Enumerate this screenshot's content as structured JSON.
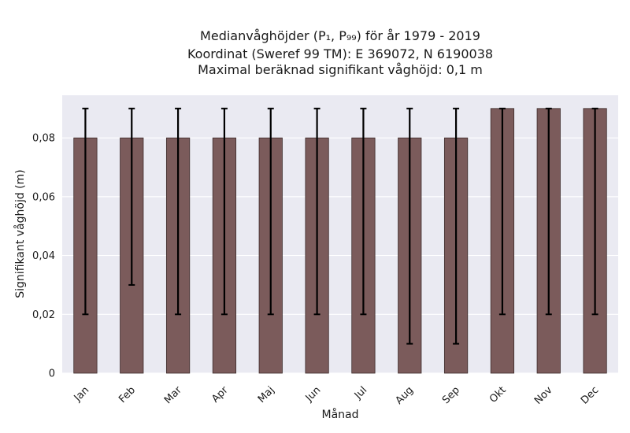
{
  "chart_data": {
    "type": "bar",
    "title_lines": [
      "Medianvåghöjder (P₁, P₉₉) för år 1979 - 2019",
      "Koordinat (Sweref 99 TM): E 369072, N 6190038",
      "Maximal beräknad signifikant våghöjd: 0,1 m"
    ],
    "xlabel": "Månad",
    "ylabel": "Signifikant våghöjd (m)",
    "categories": [
      "Jan",
      "Feb",
      "Mar",
      "Apr",
      "Maj",
      "Jun",
      "Jul",
      "Aug",
      "Sep",
      "Okt",
      "Nov",
      "Dec"
    ],
    "values": [
      0.08,
      0.08,
      0.08,
      0.08,
      0.08,
      0.08,
      0.08,
      0.08,
      0.08,
      0.09,
      0.09,
      0.09
    ],
    "error_low": [
      0.02,
      0.03,
      0.02,
      0.02,
      0.02,
      0.02,
      0.02,
      0.01,
      0.01,
      0.02,
      0.02,
      0.02
    ],
    "error_high": [
      0.09,
      0.09,
      0.09,
      0.09,
      0.09,
      0.09,
      0.09,
      0.09,
      0.09,
      0.09,
      0.09,
      0.09
    ],
    "yticks": [
      0,
      0.02,
      0.04,
      0.06,
      0.08
    ],
    "ytick_labels": [
      "0",
      "0,02",
      "0,04",
      "0,06",
      "0,08"
    ],
    "ylim": [
      0,
      0.0945
    ],
    "grid": true,
    "bar_color": "#7b5b5b",
    "plot_background": "#eaeaf2",
    "error_color": "#000000"
  }
}
